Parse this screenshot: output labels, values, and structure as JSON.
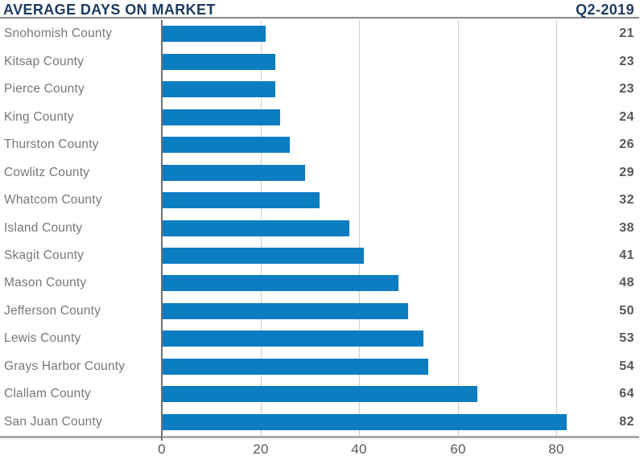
{
  "header": {
    "title": "AVERAGE DAYS ON MARKET",
    "period": "Q2-2019"
  },
  "chart_data": {
    "type": "bar",
    "orientation": "horizontal",
    "title": "AVERAGE DAYS ON MARKET",
    "subtitle": "Q2-2019",
    "categories": [
      "Snohomish County",
      "Kitsap County",
      "Pierce County",
      "King County",
      "Thurston County",
      "Cowlitz County",
      "Whatcom County",
      "Island County",
      "Skagit County",
      "Mason County",
      "Jefferson County",
      "Lewis County",
      "Grays Harbor County",
      "Clallam County",
      "San Juan County"
    ],
    "values": [
      21,
      23,
      23,
      24,
      26,
      29,
      32,
      38,
      41,
      48,
      50,
      53,
      54,
      64,
      82
    ],
    "x_ticks": [
      0,
      20,
      40,
      60,
      80
    ],
    "xlim": [
      0,
      96
    ],
    "grid": true,
    "value_labels_position": "right-aligned-column",
    "bar_color": "#0d7dc2",
    "title_color": "#1c3b5e",
    "label_color": "#76777a",
    "value_color": "#55575a"
  }
}
